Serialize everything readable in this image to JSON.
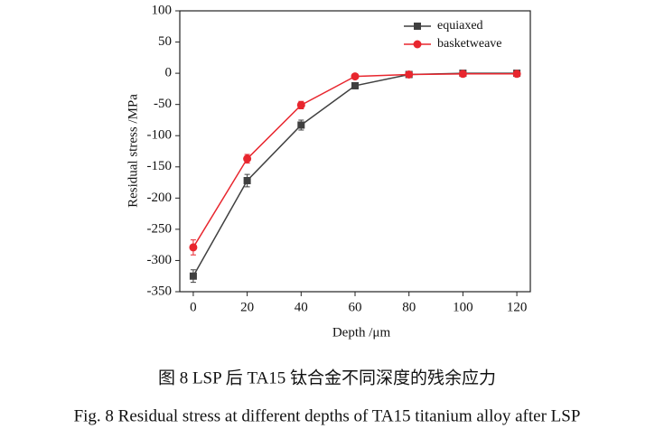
{
  "chart_data": {
    "type": "line",
    "x_label": "Depth /μm",
    "y_label": "Residual stress /MPa",
    "x": [
      0,
      20,
      40,
      60,
      80,
      100,
      120
    ],
    "series": [
      {
        "name": "equiaxed",
        "color": "#404040",
        "marker": "square",
        "values": [
          -325,
          -172,
          -83,
          -20,
          -2,
          0,
          0
        ],
        "errors": [
          10,
          10,
          8,
          5,
          2,
          2,
          2
        ]
      },
      {
        "name": "basketweave",
        "color": "#e8262e",
        "marker": "circle",
        "values": [
          -279,
          -137,
          -51,
          -5,
          -2,
          -1,
          -1
        ],
        "errors": [
          12,
          7,
          6,
          2,
          2,
          2,
          2
        ]
      }
    ],
    "xlim": [
      -5,
      125
    ],
    "xticks": [
      0,
      20,
      40,
      60,
      80,
      100,
      120
    ],
    "ylim": [
      -350,
      100
    ],
    "yticks": [
      100,
      50,
      0,
      -50,
      -100,
      -150,
      -200,
      -250,
      -300,
      -350
    ],
    "legend": "top-right",
    "grid": false
  },
  "caption_cn": "图 8 LSP 后 TA15 钛合金不同深度的残余应力",
  "caption_en": "Fig. 8 Residual stress at different depths of TA15 titanium alloy after LSP"
}
